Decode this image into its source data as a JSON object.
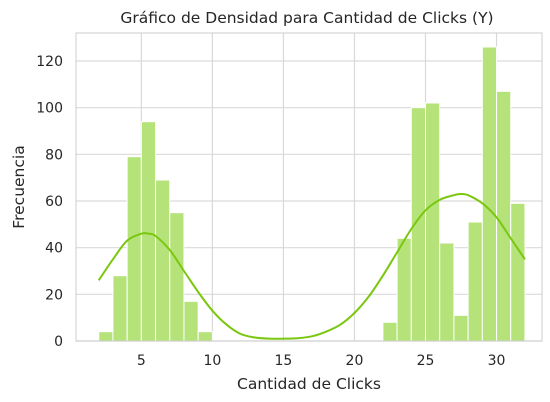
{
  "chart_data": {
    "type": "bar",
    "title": "Gráfico de Densidad para Cantidad de Clicks (Y)",
    "xlabel": "Cantidad de Clicks",
    "ylabel": "Frecuencia",
    "xlim": [
      0.4,
      33.2
    ],
    "ylim": [
      0,
      132
    ],
    "xticks": [
      5,
      10,
      15,
      20,
      25,
      30
    ],
    "yticks": [
      0,
      20,
      40,
      60,
      80,
      100,
      120
    ],
    "grid": true,
    "bar_color": "#b5e37a",
    "kde_color": "#7ac70f",
    "bins": [
      {
        "x0": 2.0,
        "x1": 3.0,
        "value": 4
      },
      {
        "x0": 3.0,
        "x1": 4.0,
        "value": 28
      },
      {
        "x0": 4.0,
        "x1": 5.0,
        "value": 79
      },
      {
        "x0": 5.0,
        "x1": 6.0,
        "value": 94
      },
      {
        "x0": 6.0,
        "x1": 7.0,
        "value": 69
      },
      {
        "x0": 7.0,
        "x1": 8.0,
        "value": 55
      },
      {
        "x0": 8.0,
        "x1": 9.0,
        "value": 17
      },
      {
        "x0": 9.0,
        "x1": 10.0,
        "value": 4
      },
      {
        "x0": 10.0,
        "x1": 11.0,
        "value": 0
      },
      {
        "x0": 11.0,
        "x1": 12.0,
        "value": 0
      },
      {
        "x0": 12.0,
        "x1": 13.0,
        "value": 0
      },
      {
        "x0": 13.0,
        "x1": 14.0,
        "value": 0
      },
      {
        "x0": 14.0,
        "x1": 15.0,
        "value": 0
      },
      {
        "x0": 15.0,
        "x1": 16.0,
        "value": 0
      },
      {
        "x0": 16.0,
        "x1": 17.0,
        "value": 0
      },
      {
        "x0": 17.0,
        "x1": 18.0,
        "value": 0
      },
      {
        "x0": 18.0,
        "x1": 19.0,
        "value": 0
      },
      {
        "x0": 19.0,
        "x1": 20.0,
        "value": 0
      },
      {
        "x0": 20.0,
        "x1": 21.0,
        "value": 0
      },
      {
        "x0": 21.0,
        "x1": 22.0,
        "value": 0
      },
      {
        "x0": 22.0,
        "x1": 23.0,
        "value": 8
      },
      {
        "x0": 23.0,
        "x1": 24.0,
        "value": 44
      },
      {
        "x0": 24.0,
        "x1": 25.0,
        "value": 100
      },
      {
        "x0": 25.0,
        "x1": 26.0,
        "value": 102
      },
      {
        "x0": 26.0,
        "x1": 27.0,
        "value": 42
      },
      {
        "x0": 27.0,
        "x1": 28.0,
        "value": 11
      },
      {
        "x0": 28.0,
        "x1": 29.0,
        "value": 51
      },
      {
        "x0": 29.0,
        "x1": 30.0,
        "value": 126
      },
      {
        "x0": 30.0,
        "x1": 31.0,
        "value": 107
      },
      {
        "x0": 31.0,
        "x1": 32.0,
        "value": 59
      }
    ],
    "kde": {
      "x": [
        2.0,
        3.0,
        4.0,
        5.0,
        5.5,
        6.0,
        7.0,
        8.0,
        9.0,
        10.0,
        11.0,
        12.0,
        13.0,
        14.0,
        15.0,
        16.0,
        17.0,
        18.0,
        19.0,
        20.0,
        21.0,
        22.0,
        23.0,
        24.0,
        25.0,
        26.0,
        27.0,
        27.5,
        28.0,
        29.0,
        30.0,
        31.0,
        32.0
      ],
      "y": [
        26,
        35,
        43,
        46,
        46,
        45,
        39,
        30,
        21,
        13,
        7,
        3,
        1.5,
        1,
        1,
        1.2,
        2,
        4,
        7,
        12,
        19,
        28,
        38,
        48,
        56,
        60.5,
        62.5,
        63,
        62.5,
        59,
        53,
        44,
        35
      ]
    }
  }
}
